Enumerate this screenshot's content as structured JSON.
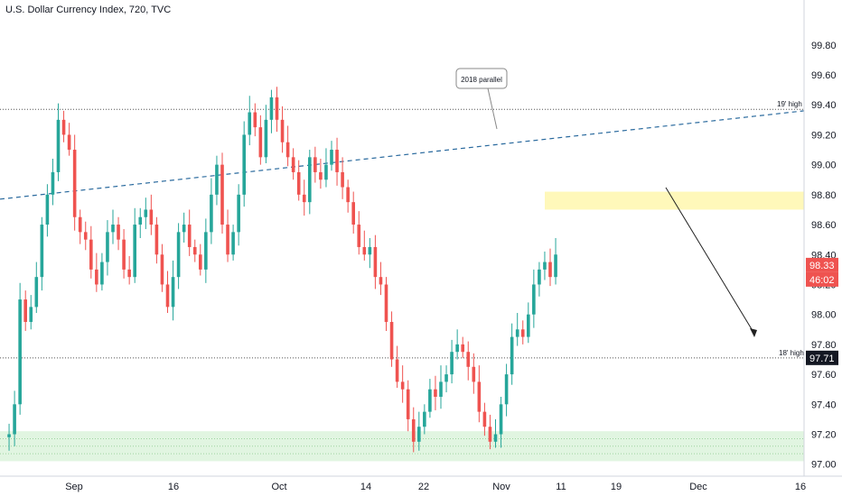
{
  "header": {
    "title": "U.S. Dollar Currency Index, 720, TVC"
  },
  "colors": {
    "up": "#26a69a",
    "down": "#ef5350",
    "trendline": "#2a6a9e",
    "support_zone": "#c8ecc9",
    "resistance_zone": "#fff59d"
  },
  "labels": {
    "high_2019": "19' high",
    "high_2018": "18' high",
    "parallel_callout": "2018 parallel",
    "last_price": "98.33",
    "countdown": "46:02",
    "level_1871": "97.71"
  },
  "chart_data": {
    "type": "candlestick",
    "title": "U.S. Dollar Currency Index, 720, TVC",
    "ylim": [
      96.92,
      100.1
    ],
    "y_ticks": [
      "99.80",
      "99.60",
      "99.40",
      "99.20",
      "99.00",
      "98.80",
      "98.60",
      "98.40",
      "98.20",
      "98.00",
      "97.80",
      "97.60",
      "97.40",
      "97.20",
      "97.00"
    ],
    "x_ticks": [
      "Sep",
      "16",
      "Oct",
      "14",
      "22",
      "Nov",
      "11",
      "19",
      "Dec",
      "16"
    ],
    "price_points": [
      97.18,
      97.2,
      97.4,
      98.1,
      97.95,
      98.05,
      98.25,
      98.6,
      98.8,
      98.95,
      99.3,
      99.2,
      99.1,
      98.65,
      98.55,
      98.5,
      98.3,
      98.2,
      98.35,
      98.55,
      98.6,
      98.5,
      98.3,
      98.25,
      98.6,
      98.65,
      98.7,
      98.6,
      98.4,
      98.2,
      98.05,
      98.25,
      98.55,
      98.6,
      98.45,
      98.4,
      98.3,
      98.55,
      98.8,
      99.0,
      98.6,
      98.4,
      98.55,
      98.8,
      99.2,
      99.35,
      99.25,
      99.05,
      99.3,
      99.45,
      99.3,
      99.15,
      99.05,
      98.95,
      98.8,
      98.75,
      99.05,
      98.95,
      98.9,
      99.0,
      99.1,
      98.95,
      98.85,
      98.75,
      98.6,
      98.45,
      98.4,
      98.45,
      98.25,
      98.2,
      97.95,
      97.7,
      97.55,
      97.5,
      97.3,
      97.15,
      97.25,
      97.35,
      97.5,
      97.45,
      97.55,
      97.6,
      97.75,
      97.8,
      97.75,
      97.65,
      97.55,
      97.35,
      97.25,
      97.15,
      97.2,
      97.4,
      97.6,
      97.85,
      97.9,
      97.85,
      98.0,
      98.2,
      98.3,
      98.35,
      98.25,
      98.4
    ],
    "levels": [
      {
        "name": "19' high",
        "y": 99.37
      },
      {
        "name": "18' high",
        "y": 97.71
      }
    ],
    "zones": [
      {
        "name": "support",
        "from": 97.02,
        "to": 97.22
      },
      {
        "name": "resistance",
        "from": 98.7,
        "to": 98.82
      }
    ],
    "last_price": 98.33,
    "countdown": "46:02"
  }
}
